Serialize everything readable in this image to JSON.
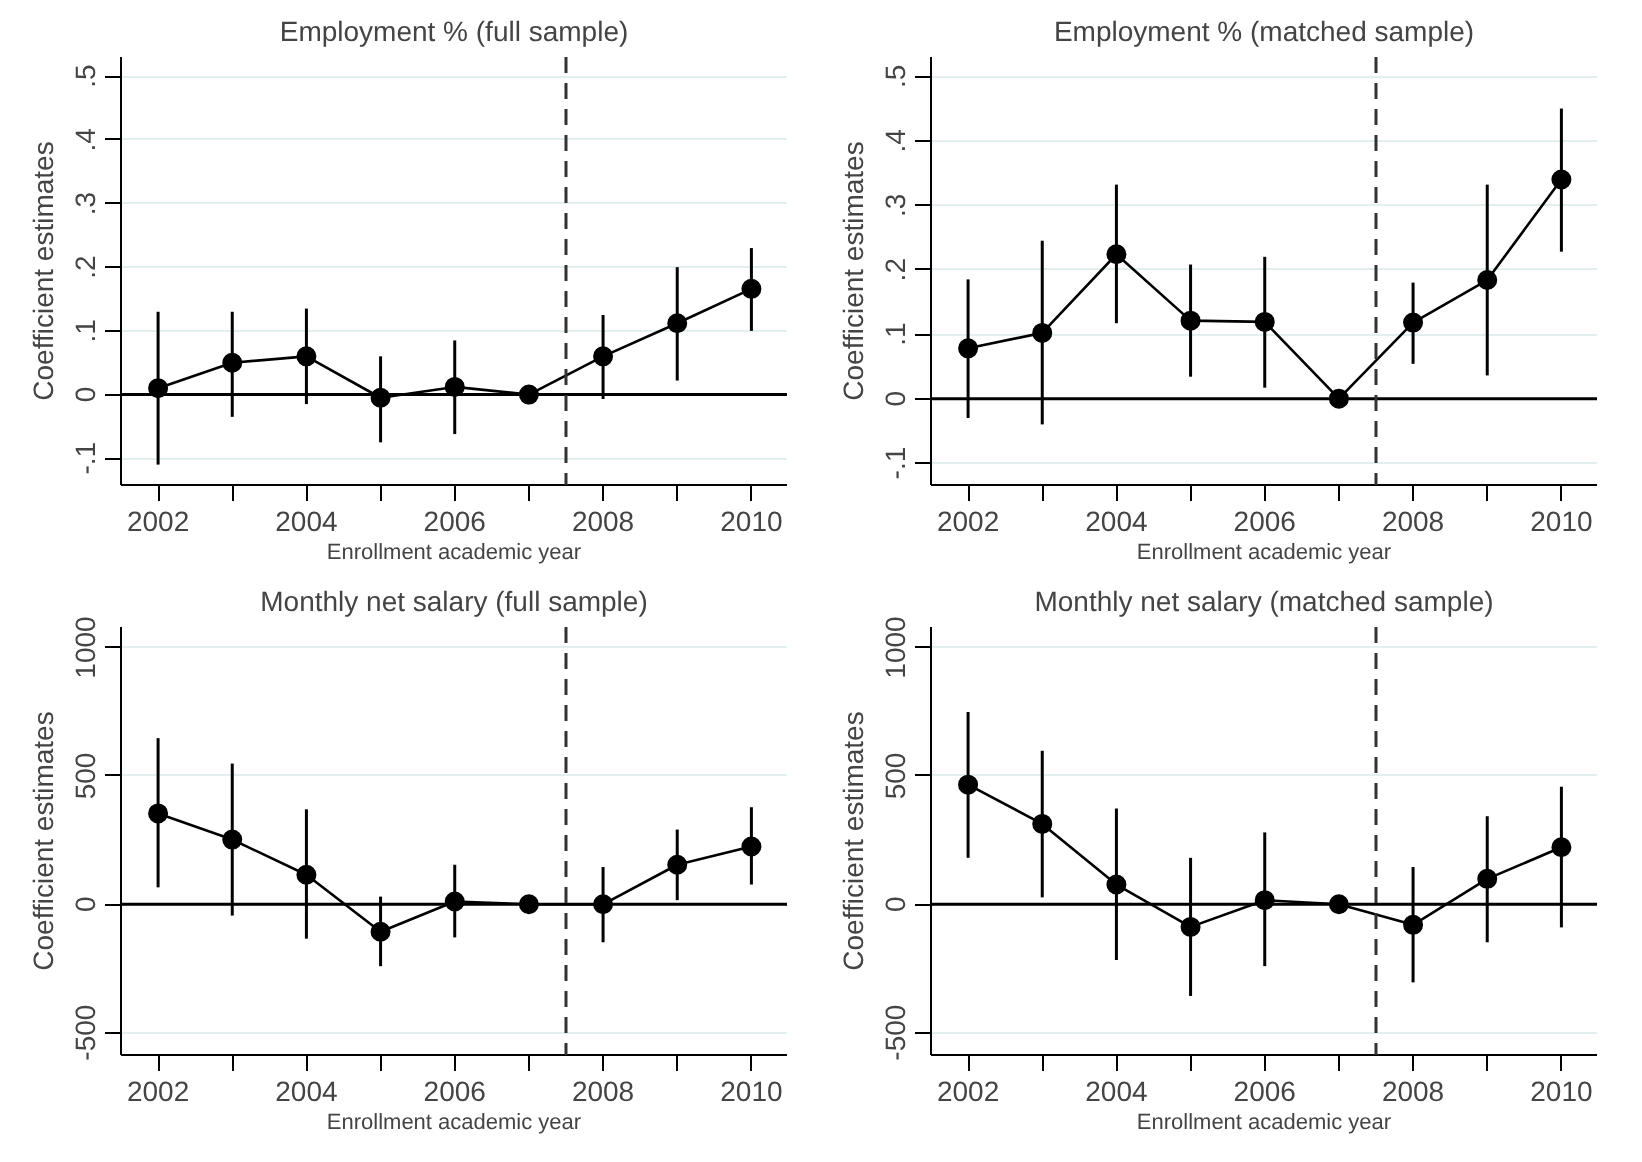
{
  "chart_data": [
    {
      "type": "line",
      "title": "Employment % (full sample)",
      "xlabel": "Enrollment academic year",
      "ylabel": "Coefficient estimates",
      "x": [
        2002,
        2003,
        2004,
        2005,
        2006,
        2007,
        2008,
        2009,
        2010
      ],
      "xlim": [
        2001.5,
        2010.48
      ],
      "xticks": [
        2002,
        {
          "value": 2003,
          "label": null
        },
        2004,
        {
          "value": 2005,
          "label": null
        },
        2006,
        {
          "value": 2007,
          "label": null
        },
        2008,
        {
          "value": 2009,
          "label": null
        },
        2010
      ],
      "ylim": [
        -0.142,
        0.53
      ],
      "yticks": [
        {
          "value": -0.1,
          "label": "-.1"
        },
        0,
        {
          "value": 0.1,
          "label": ".1"
        },
        {
          "value": 0.2,
          "label": ".2"
        },
        {
          "value": 0.3,
          "label": ".3"
        },
        {
          "value": 0.4,
          "label": ".4"
        },
        {
          "value": 0.5,
          "label": ".5"
        }
      ],
      "grid": "y",
      "marker": "circle",
      "line_style": "solid",
      "series": [
        {
          "color": "#000000",
          "values": [
            0.01,
            0.05,
            0.06,
            -0.005,
            0.012,
            0,
            0.06,
            0.112,
            0.166
          ],
          "errors": [
            [
              -0.11,
              0.13
            ],
            [
              -0.035,
              0.13
            ],
            [
              -0.015,
              0.135
            ],
            [
              -0.075,
              0.06
            ],
            [
              -0.062,
              0.085
            ],
            null,
            [
              -0.007,
              0.125
            ],
            [
              0.022,
              0.2
            ],
            [
              0.1,
              0.23
            ]
          ]
        }
      ],
      "ref_lines": [
        {
          "axis": "y",
          "value": 0,
          "color": "#000000",
          "line_style": "solid"
        },
        {
          "axis": "x",
          "value": 2007.5,
          "color": "#333333",
          "line_style": "dashed"
        }
      ]
    },
    {
      "type": "line",
      "title": "Employment % (matched sample)",
      "xlabel": "Enrollment academic year",
      "ylabel": "Coefficient estimates",
      "x": [
        2002,
        2003,
        2004,
        2005,
        2006,
        2007,
        2008,
        2009,
        2010
      ],
      "xlim": [
        2001.5,
        2010.48
      ],
      "xticks": [
        2002,
        {
          "value": 2003,
          "label": null
        },
        2004,
        {
          "value": 2005,
          "label": null
        },
        2006,
        {
          "value": 2007,
          "label": null
        },
        2008,
        {
          "value": 2009,
          "label": null
        },
        2010
      ],
      "ylim": [
        -0.134,
        0.53
      ],
      "yticks": [
        {
          "value": -0.1,
          "label": "-.1"
        },
        0,
        {
          "value": 0.1,
          "label": ".1"
        },
        {
          "value": 0.2,
          "label": ".2"
        },
        {
          "value": 0.3,
          "label": ".3"
        },
        {
          "value": 0.4,
          "label": ".4"
        },
        {
          "value": 0.5,
          "label": ".5"
        }
      ],
      "grid": "y",
      "marker": "circle",
      "line_style": "solid",
      "series": [
        {
          "color": "#000000",
          "values": [
            0.078,
            0.102,
            0.224,
            0.121,
            0.119,
            0,
            0.118,
            0.184,
            0.34
          ],
          "errors": [
            [
              -0.03,
              0.185
            ],
            [
              -0.04,
              0.245
            ],
            [
              0.117,
              0.332
            ],
            [
              0.034,
              0.208
            ],
            [
              0.017,
              0.22
            ],
            null,
            [
              0.054,
              0.18
            ],
            [
              0.036,
              0.332
            ],
            [
              0.228,
              0.45
            ]
          ]
        }
      ],
      "ref_lines": [
        {
          "axis": "y",
          "value": 0,
          "color": "#000000",
          "line_style": "solid"
        },
        {
          "axis": "x",
          "value": 2007.5,
          "color": "#333333",
          "line_style": "dashed"
        }
      ]
    },
    {
      "type": "line",
      "title": "Monthly net salary (full sample)",
      "xlabel": "Enrollment academic year",
      "ylabel": "Coefficient estimates",
      "x": [
        2002,
        2003,
        2004,
        2005,
        2006,
        2007,
        2008,
        2009,
        2010
      ],
      "xlim": [
        2001.5,
        2010.48
      ],
      "xticks": [
        2002,
        {
          "value": 2003,
          "label": null
        },
        2004,
        {
          "value": 2005,
          "label": null
        },
        2006,
        {
          "value": 2007,
          "label": null
        },
        2008,
        {
          "value": 2009,
          "label": null
        },
        2010
      ],
      "ylim": [
        -587,
        1080
      ],
      "yticks": [
        -500,
        0,
        500,
        1000
      ],
      "grid": "y",
      "marker": "circle",
      "line_style": "solid",
      "series": [
        {
          "color": "#000000",
          "values": [
            354,
            252,
            115,
            -107,
            11,
            0,
            0,
            154,
            225
          ],
          "errors": [
            [
              66,
              647
            ],
            [
              -44,
              548
            ],
            [
              -134,
              370
            ],
            [
              -241,
              30
            ],
            [
              -129,
              154
            ],
            null,
            [
              -148,
              145
            ],
            [
              16,
              291
            ],
            [
              77,
              378
            ]
          ]
        }
      ],
      "ref_lines": [
        {
          "axis": "y",
          "value": 0,
          "color": "#000000",
          "line_style": "solid"
        },
        {
          "axis": "x",
          "value": 2007.5,
          "color": "#333333",
          "line_style": "dashed"
        }
      ]
    },
    {
      "type": "line",
      "title": "Monthly net salary (matched sample)",
      "xlabel": "Enrollment academic year",
      "ylabel": "Coefficient estimates",
      "x": [
        2002,
        2003,
        2004,
        2005,
        2006,
        2007,
        2008,
        2009,
        2010
      ],
      "xlim": [
        2001.5,
        2010.48
      ],
      "xticks": [
        2002,
        {
          "value": 2003,
          "label": null
        },
        2004,
        {
          "value": 2005,
          "label": null
        },
        2006,
        {
          "value": 2007,
          "label": null
        },
        2008,
        {
          "value": 2009,
          "label": null
        },
        2010
      ],
      "ylim": [
        -587,
        1080
      ],
      "yticks": [
        -500,
        0,
        500,
        1000
      ],
      "grid": "y",
      "marker": "circle",
      "line_style": "solid",
      "series": [
        {
          "color": "#000000",
          "values": [
            466,
            313,
            77,
            -88,
            16,
            0,
            -80,
            99,
            222
          ],
          "errors": [
            [
              181,
              749
            ],
            [
              27,
              598
            ],
            [
              -217,
              373
            ],
            [
              -357,
              181
            ],
            [
              -241,
              280
            ],
            null,
            [
              -304,
              145
            ],
            [
              -148,
              343
            ],
            [
              -90,
              458
            ]
          ]
        }
      ],
      "ref_lines": [
        {
          "axis": "y",
          "value": 0,
          "color": "#000000",
          "line_style": "solid"
        },
        {
          "axis": "x",
          "value": 2007.5,
          "color": "#333333",
          "line_style": "dashed"
        }
      ]
    }
  ]
}
